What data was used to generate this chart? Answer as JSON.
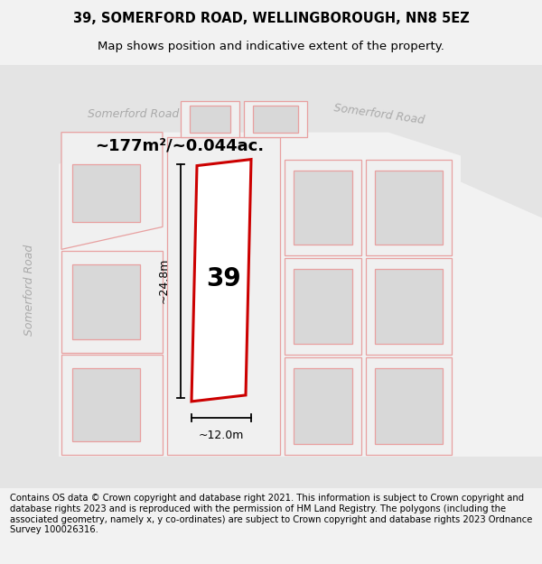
{
  "title_line1": "39, SOMERFORD ROAD, WELLINGBOROUGH, NN8 5EZ",
  "title_line2": "Map shows position and indicative extent of the property.",
  "footer_text": "Contains OS data © Crown copyright and database right 2021. This information is subject to Crown copyright and database rights 2023 and is reproduced with the permission of HM Land Registry. The polygons (including the associated geometry, namely x, y co-ordinates) are subject to Crown copyright and database rights 2023 Ordnance Survey 100026316.",
  "area_label": "~177m²/~0.044ac.",
  "number_label": "39",
  "dim_height_label": "~24.8m",
  "dim_width_label": "~12.0m",
  "road_label_top_left": "Somerford Road",
  "road_label_left": "Somerford Road",
  "road_label_top_right": "Somerford Road",
  "bg_color": "#f2f2f2",
  "map_bg": "#f7f7f7",
  "road_fill": "#e8e8e8",
  "building_fill": "#d8d8d8",
  "plot_fill": "#f0f0f0",
  "plot_outline_color": "#cc0000",
  "line_color_pink": "#e8a0a0",
  "text_color_road": "#aaaaaa",
  "title_fontsize": 10.5,
  "subtitle_fontsize": 9.5,
  "footer_fontsize": 7.2
}
